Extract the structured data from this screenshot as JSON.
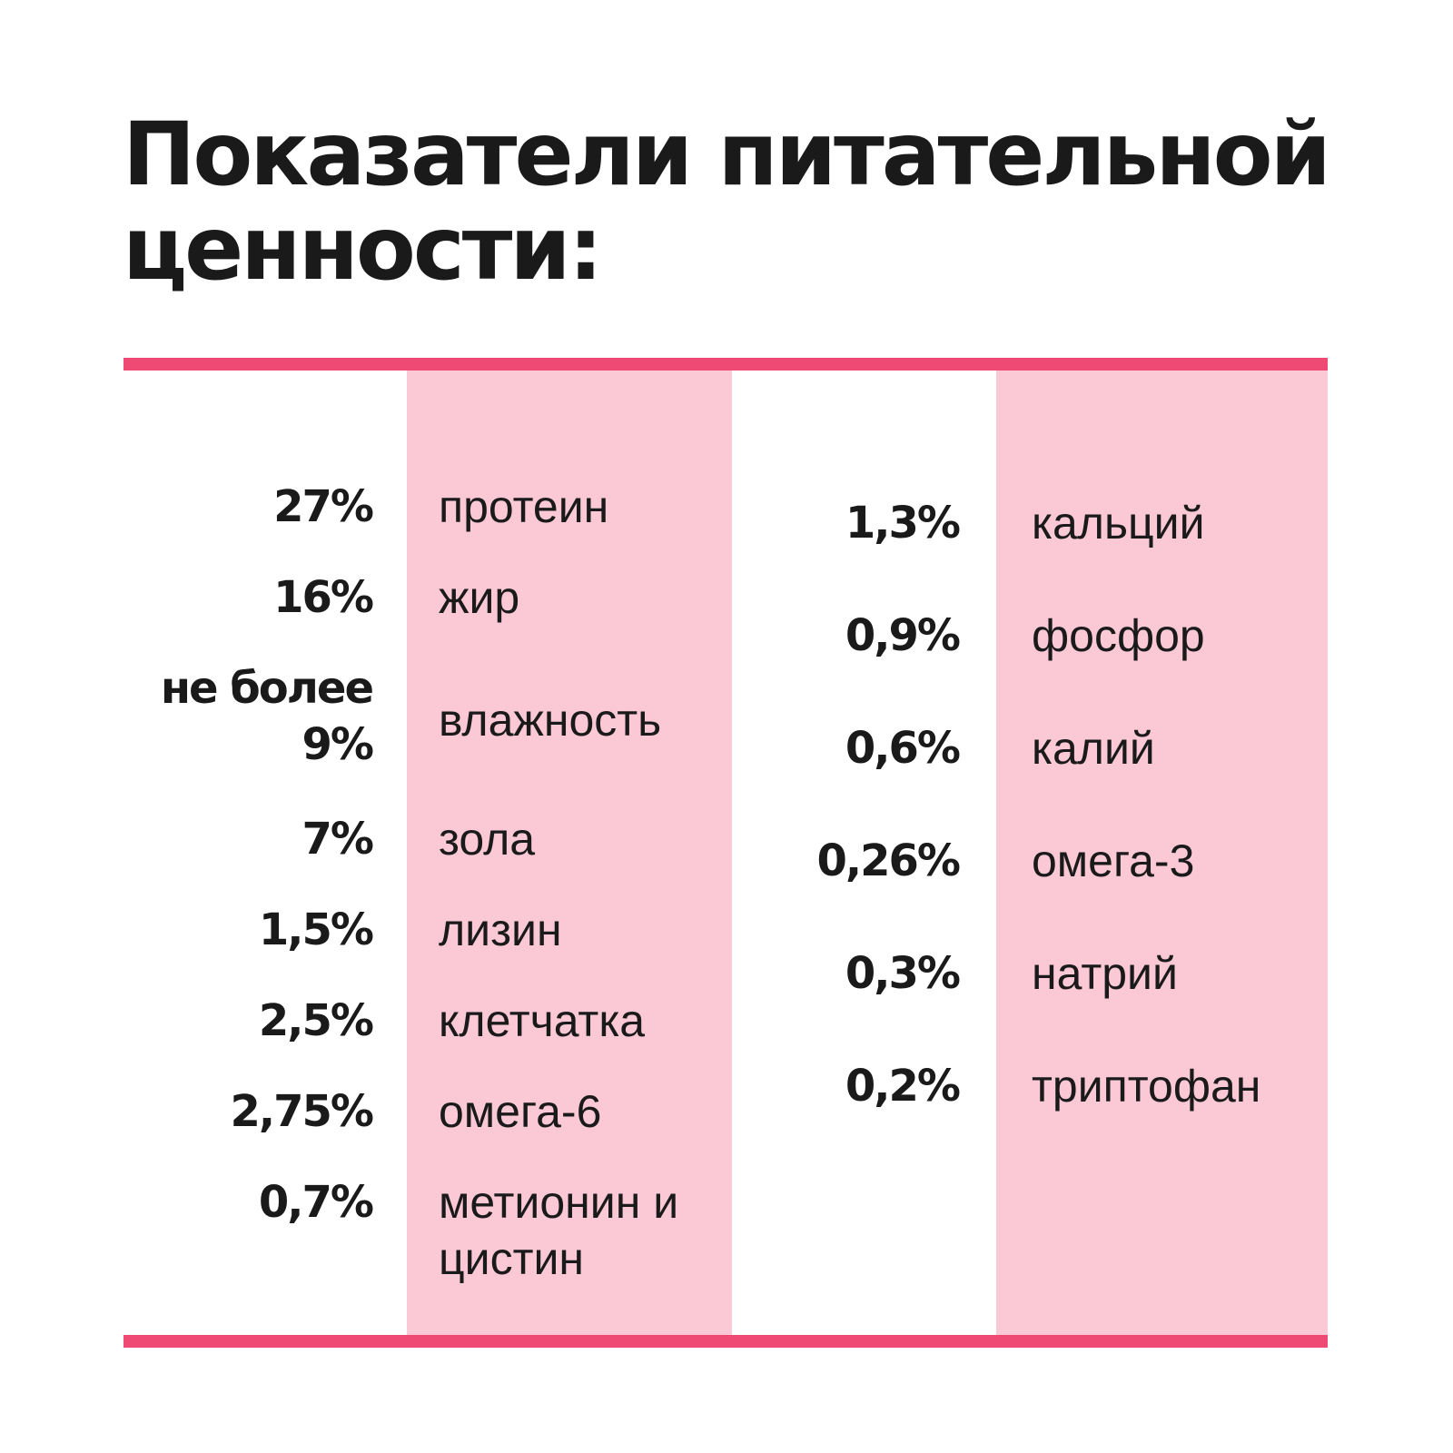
{
  "title": "Показатели питательной ценности:",
  "accent_color": "#ef4a74",
  "band_color": "#fbc9d6",
  "left_column": [
    {
      "value": "27%",
      "name": "протеин"
    },
    {
      "value": "16%",
      "name": "жир"
    },
    {
      "value": "не более 9%",
      "name": "влажность"
    },
    {
      "value": "7%",
      "name": "зола"
    },
    {
      "value": "1,5%",
      "name": "лизин"
    },
    {
      "value": "2,5%",
      "name": "клетчатка"
    },
    {
      "value": "2,75%",
      "name": "омега-6"
    },
    {
      "value": "0,7%",
      "name": "метионин и цистин"
    }
  ],
  "right_column": [
    {
      "value": "1,3%",
      "name": "кальций"
    },
    {
      "value": "0,9%",
      "name": "фосфор"
    },
    {
      "value": "0,6%",
      "name": "калий"
    },
    {
      "value": "0,26%",
      "name": "омега-3"
    },
    {
      "value": "0,3%",
      "name": "натрий"
    },
    {
      "value": "0,2%",
      "name": "триптофан"
    }
  ]
}
